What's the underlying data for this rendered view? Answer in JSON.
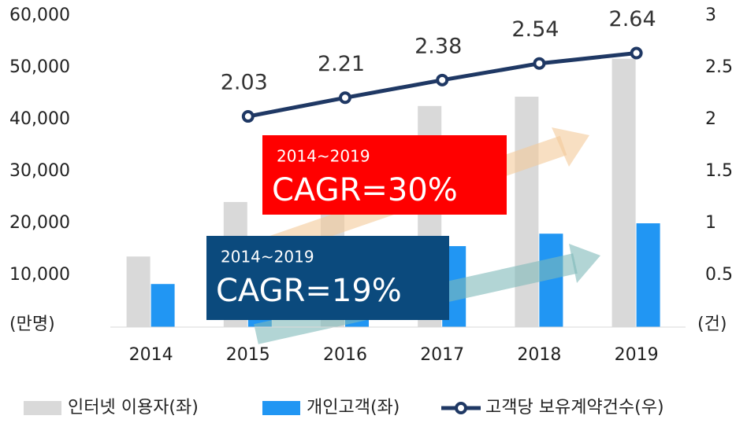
{
  "chart_data": {
    "type": "bar_line",
    "categories": [
      "2014",
      "2015",
      "2016",
      "2017",
      "2018",
      "2019"
    ],
    "series": [
      {
        "name": "인터넷 이용자(좌)",
        "color": "#d9d9d9",
        "values": [
          13600,
          24100,
          31000,
          42600,
          44400,
          51700
        ]
      },
      {
        "name": "개인고객(좌)",
        "color": "#2196f3",
        "values": [
          8300,
          10500,
          12500,
          15600,
          18000,
          20000
        ]
      },
      {
        "name": "고객당 보유계약건수(우)",
        "color": "#1f3864",
        "axis": "y2",
        "values": [
          null,
          2.03,
          2.21,
          2.38,
          2.54,
          2.64
        ]
      }
    ],
    "ylim": [
      0,
      60000
    ],
    "yticks": [
      {
        "value": 10000,
        "label": "10,000"
      },
      {
        "value": 20000,
        "label": "20,000"
      },
      {
        "value": 30000,
        "label": "30,000"
      },
      {
        "value": 40000,
        "label": "40,000"
      },
      {
        "value": 50000,
        "label": "50,000"
      },
      {
        "value": 60000,
        "label": "60,000"
      }
    ],
    "y2lim": [
      0,
      3
    ],
    "y2ticks": [
      0.5,
      1,
      1.5,
      2,
      2.5,
      3
    ],
    "y_label": "(만명)",
    "y2_label": "(건)",
    "annotations": [
      {
        "period": "2014~2019",
        "text": "CAGR=30%",
        "color": "#ff0000"
      },
      {
        "period": "2014~2019",
        "text": "CAGR=19%",
        "color": "#0b4a7d"
      }
    ]
  }
}
